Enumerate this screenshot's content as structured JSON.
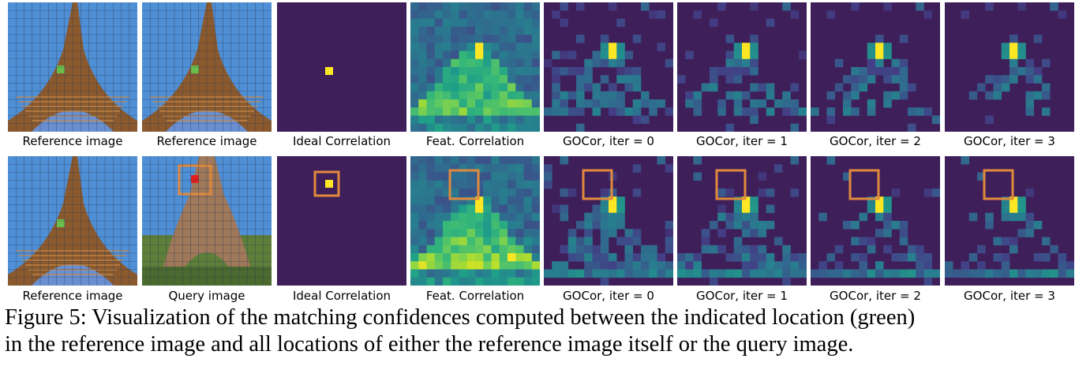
{
  "figure": {
    "rows": [
      {
        "panels": [
          {
            "kind": "photo-reference",
            "label": "Reference image"
          },
          {
            "kind": "photo-reference",
            "label": "Reference image"
          },
          {
            "kind": "ideal",
            "label": "Ideal Correlation"
          },
          {
            "kind": "feat",
            "label": "Feat. Correlation"
          },
          {
            "kind": "gocor0",
            "label": "GOCor, iter = 0"
          },
          {
            "kind": "gocor1",
            "label": "GOCor, iter = 1"
          },
          {
            "kind": "gocor2",
            "label": "GOCor, iter = 2"
          },
          {
            "kind": "gocor3",
            "label": "GOCor, iter = 3"
          }
        ]
      },
      {
        "panels": [
          {
            "kind": "photo-reference",
            "label": "Reference image"
          },
          {
            "kind": "photo-query",
            "label": "Query image"
          },
          {
            "kind": "ideal",
            "label": "Ideal Correlation"
          },
          {
            "kind": "feat",
            "label": "Feat. Correlation"
          },
          {
            "kind": "gocor0",
            "label": "GOCor, iter = 0"
          },
          {
            "kind": "gocor1",
            "label": "GOCor, iter = 1"
          },
          {
            "kind": "gocor2",
            "label": "GOCor, iter = 2"
          },
          {
            "kind": "gocor3",
            "label": "GOCor, iter = 3"
          }
        ]
      }
    ],
    "colors": {
      "heatmap_bg": "#3f1f5a",
      "heatmap_peak": "#fde725",
      "heatmap_mid": "#2a8a8a",
      "marker_green": "#6abf4b",
      "marker_red": "#e0201c",
      "highlight_box": "#e08a3c",
      "sky": "#4f8fd6",
      "tower": "#8a5a2e"
    }
  },
  "caption": {
    "line1": "Figure 5: Visualization of the matching confidences computed between the indicated location (green)",
    "line2": "in the reference image and all locations of either the reference image itself or the query image."
  }
}
